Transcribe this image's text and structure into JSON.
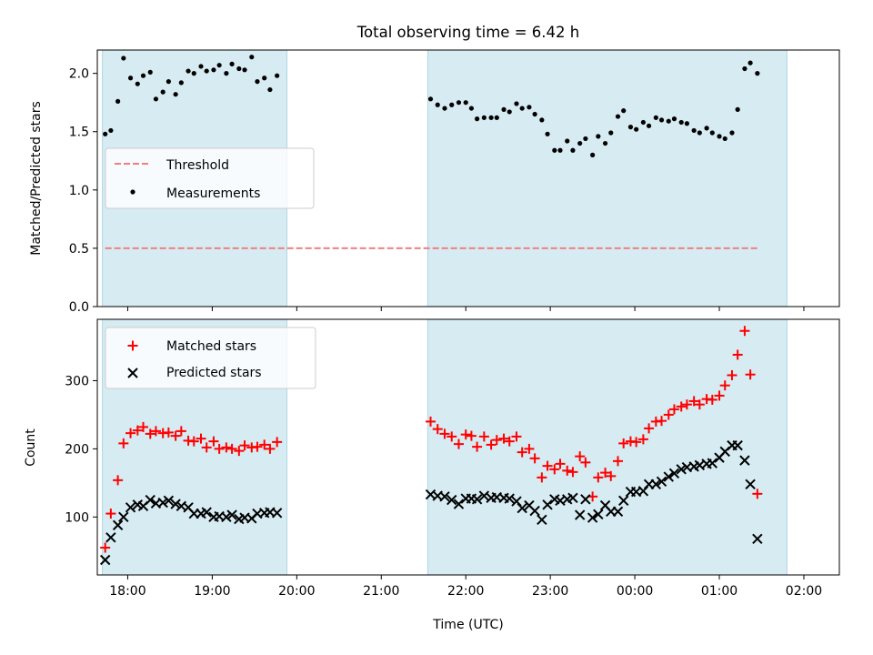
{
  "title": "Total observing time = 6.42 h",
  "chart_data": [
    {
      "type": "scatter",
      "ylabel": "Matched/Predicted stars",
      "xlabel": "",
      "ylim": [
        0,
        2.2
      ],
      "yticks": [
        "0.0",
        "0.5",
        "1.0",
        "1.5",
        "2.0"
      ],
      "legend_position": "center-left",
      "threshold": {
        "name": "Threshold",
        "value": 0.5,
        "color": "#f08080",
        "style": "dashed"
      },
      "shaded_intervals": [
        [
          "17:42",
          "19:53"
        ],
        [
          "21:33",
          "01:48"
        ]
      ],
      "series": [
        {
          "name": "Measurements",
          "color": "#000000",
          "marker": "dot",
          "points": [
            [
              "17:44",
              1.48
            ],
            [
              "17:48",
              1.51
            ],
            [
              "17:53",
              1.76
            ],
            [
              "17:57",
              2.13
            ],
            [
              "18:02",
              1.96
            ],
            [
              "18:07",
              1.91
            ],
            [
              "18:11",
              1.98
            ],
            [
              "18:16",
              2.01
            ],
            [
              "18:20",
              1.78
            ],
            [
              "18:25",
              1.84
            ],
            [
              "18:29",
              1.93
            ],
            [
              "18:34",
              1.82
            ],
            [
              "18:38",
              1.92
            ],
            [
              "18:43",
              2.02
            ],
            [
              "18:47",
              2.0
            ],
            [
              "18:52",
              2.06
            ],
            [
              "18:56",
              2.02
            ],
            [
              "19:01",
              2.03
            ],
            [
              "19:05",
              2.07
            ],
            [
              "19:10",
              2.0
            ],
            [
              "19:14",
              2.08
            ],
            [
              "19:19",
              2.04
            ],
            [
              "19:23",
              2.03
            ],
            [
              "19:28",
              2.14
            ],
            [
              "19:32",
              1.93
            ],
            [
              "19:37",
              1.96
            ],
            [
              "19:41",
              1.86
            ],
            [
              "19:46",
              1.98
            ],
            [
              "21:35",
              1.78
            ],
            [
              "21:40",
              1.73
            ],
            [
              "21:45",
              1.7
            ],
            [
              "21:50",
              1.73
            ],
            [
              "21:55",
              1.75
            ],
            [
              "22:00",
              1.75
            ],
            [
              "22:04",
              1.7
            ],
            [
              "22:08",
              1.61
            ],
            [
              "22:13",
              1.62
            ],
            [
              "22:18",
              1.62
            ],
            [
              "22:22",
              1.62
            ],
            [
              "22:27",
              1.69
            ],
            [
              "22:31",
              1.67
            ],
            [
              "22:36",
              1.74
            ],
            [
              "22:40",
              1.7
            ],
            [
              "22:45",
              1.71
            ],
            [
              "22:49",
              1.65
            ],
            [
              "22:54",
              1.6
            ],
            [
              "22:58",
              1.48
            ],
            [
              "23:03",
              1.34
            ],
            [
              "23:07",
              1.34
            ],
            [
              "23:12",
              1.42
            ],
            [
              "23:16",
              1.34
            ],
            [
              "23:21",
              1.4
            ],
            [
              "23:25",
              1.44
            ],
            [
              "23:30",
              1.3
            ],
            [
              "23:34",
              1.46
            ],
            [
              "23:39",
              1.4
            ],
            [
              "23:43",
              1.49
            ],
            [
              "23:48",
              1.63
            ],
            [
              "23:52",
              1.68
            ],
            [
              "23:57",
              1.54
            ],
            [
              "00:01",
              1.52
            ],
            [
              "00:06",
              1.58
            ],
            [
              "00:10",
              1.55
            ],
            [
              "00:15",
              1.62
            ],
            [
              "00:19",
              1.6
            ],
            [
              "00:24",
              1.59
            ],
            [
              "00:28",
              1.61
            ],
            [
              "00:33",
              1.58
            ],
            [
              "00:37",
              1.57
            ],
            [
              "00:42",
              1.51
            ],
            [
              "00:46",
              1.49
            ],
            [
              "00:51",
              1.53
            ],
            [
              "00:55",
              1.49
            ],
            [
              "01:00",
              1.46
            ],
            [
              "01:04",
              1.44
            ],
            [
              "01:09",
              1.49
            ],
            [
              "01:13",
              1.69
            ],
            [
              "01:18",
              2.04
            ],
            [
              "01:22",
              2.09
            ],
            [
              "01:27",
              2.0
            ]
          ]
        }
      ]
    },
    {
      "type": "scatter",
      "ylabel": "Count",
      "xlabel": "Time (UTC)",
      "ylim": [
        15,
        390
      ],
      "yticks": [
        "100",
        "200",
        "300"
      ],
      "xticks": [
        "18:00",
        "19:00",
        "20:00",
        "21:00",
        "22:00",
        "23:00",
        "00:00",
        "01:00",
        "02:00"
      ],
      "legend_position": "top-left",
      "shaded_intervals": [
        [
          "17:42",
          "19:53"
        ],
        [
          "21:33",
          "01:48"
        ]
      ],
      "series": [
        {
          "name": "Matched stars",
          "color": "#ff0000",
          "marker": "plus",
          "points": [
            [
              "17:44",
              55
            ],
            [
              "17:48",
              105
            ],
            [
              "17:53",
              154
            ],
            [
              "17:57",
              208
            ],
            [
              "18:02",
              223
            ],
            [
              "18:07",
              227
            ],
            [
              "18:11",
              232
            ],
            [
              "18:16",
              222
            ],
            [
              "18:20",
              226
            ],
            [
              "18:25",
              223
            ],
            [
              "18:29",
              224
            ],
            [
              "18:34",
              219
            ],
            [
              "18:38",
              226
            ],
            [
              "18:43",
              212
            ],
            [
              "18:47",
              211
            ],
            [
              "18:52",
              215
            ],
            [
              "18:56",
              202
            ],
            [
              "19:01",
              211
            ],
            [
              "19:05",
              200
            ],
            [
              "19:10",
              202
            ],
            [
              "19:14",
              200
            ],
            [
              "19:19",
              197
            ],
            [
              "19:23",
              205
            ],
            [
              "19:28",
              202
            ],
            [
              "19:32",
              203
            ],
            [
              "19:37",
              206
            ],
            [
              "19:41",
              200
            ],
            [
              "19:46",
              210
            ],
            [
              "21:35",
              240
            ],
            [
              "21:40",
              229
            ],
            [
              "21:45",
              222
            ],
            [
              "21:50",
              218
            ],
            [
              "21:55",
              207
            ],
            [
              "22:00",
              221
            ],
            [
              "22:04",
              219
            ],
            [
              "22:08",
              203
            ],
            [
              "22:13",
              218
            ],
            [
              "22:18",
              206
            ],
            [
              "22:22",
              213
            ],
            [
              "22:27",
              215
            ],
            [
              "22:31",
              211
            ],
            [
              "22:36",
              218
            ],
            [
              "22:40",
              195
            ],
            [
              "22:45",
              200
            ],
            [
              "22:49",
              186
            ],
            [
              "22:54",
              158
            ],
            [
              "22:58",
              175
            ],
            [
              "23:03",
              170
            ],
            [
              "23:07",
              178
            ],
            [
              "23:12",
              168
            ],
            [
              "23:16",
              166
            ],
            [
              "23:21",
              189
            ],
            [
              "23:25",
              180
            ],
            [
              "23:30",
              130
            ],
            [
              "23:34",
              158
            ],
            [
              "23:39",
              165
            ],
            [
              "23:43",
              160
            ],
            [
              "23:48",
              182
            ],
            [
              "23:52",
              208
            ],
            [
              "23:57",
              211
            ],
            [
              "00:01",
              210
            ],
            [
              "00:06",
              214
            ],
            [
              "00:10",
              230
            ],
            [
              "00:15",
              240
            ],
            [
              "00:19",
              241
            ],
            [
              "00:24",
              250
            ],
            [
              "00:28",
              258
            ],
            [
              "00:33",
              262
            ],
            [
              "00:37",
              265
            ],
            [
              "00:42",
              270
            ],
            [
              "00:46",
              265
            ],
            [
              "00:51",
              273
            ],
            [
              "00:55",
              272
            ],
            [
              "01:00",
              278
            ],
            [
              "01:04",
              293
            ],
            [
              "01:09",
              308
            ],
            [
              "01:13",
              338
            ],
            [
              "01:18",
              373
            ],
            [
              "01:22",
              309
            ],
            [
              "01:27",
              134
            ]
          ]
        },
        {
          "name": "Predicted stars",
          "color": "#000000",
          "marker": "x",
          "points": [
            [
              "17:44",
              37
            ],
            [
              "17:48",
              70
            ],
            [
              "17:53",
              88
            ],
            [
              "17:57",
              100
            ],
            [
              "18:02",
              114
            ],
            [
              "18:07",
              118
            ],
            [
              "18:11",
              116
            ],
            [
              "18:16",
              125
            ],
            [
              "18:20",
              120
            ],
            [
              "18:25",
              121
            ],
            [
              "18:29",
              124
            ],
            [
              "18:34",
              119
            ],
            [
              "18:38",
              116
            ],
            [
              "18:43",
              114
            ],
            [
              "18:47",
              105
            ],
            [
              "18:52",
              105
            ],
            [
              "18:56",
              107
            ],
            [
              "19:01",
              100
            ],
            [
              "19:05",
              101
            ],
            [
              "19:10",
              100
            ],
            [
              "19:14",
              103
            ],
            [
              "19:19",
              97
            ],
            [
              "19:23",
              99
            ],
            [
              "19:28",
              98
            ],
            [
              "19:32",
              105
            ],
            [
              "19:37",
              106
            ],
            [
              "19:41",
              107
            ],
            [
              "19:46",
              106
            ],
            [
              "21:35",
              133
            ],
            [
              "21:40",
              131
            ],
            [
              "21:45",
              130
            ],
            [
              "21:50",
              125
            ],
            [
              "21:55",
              119
            ],
            [
              "22:00",
              127
            ],
            [
              "22:04",
              127
            ],
            [
              "22:08",
              126
            ],
            [
              "22:13",
              131
            ],
            [
              "22:18",
              128
            ],
            [
              "22:22",
              129
            ],
            [
              "22:27",
              128
            ],
            [
              "22:31",
              127
            ],
            [
              "22:36",
              123
            ],
            [
              "22:40",
              113
            ],
            [
              "22:45",
              117
            ],
            [
              "22:49",
              109
            ],
            [
              "22:54",
              96
            ],
            [
              "22:58",
              118
            ],
            [
              "23:03",
              126
            ],
            [
              "23:07",
              124
            ],
            [
              "23:12",
              126
            ],
            [
              "23:16",
              128
            ],
            [
              "23:21",
              103
            ],
            [
              "23:25",
              126
            ],
            [
              "23:30",
              99
            ],
            [
              "23:34",
              104
            ],
            [
              "23:39",
              117
            ],
            [
              "23:43",
              108
            ],
            [
              "23:48",
              108
            ],
            [
              "23:52",
              124
            ],
            [
              "23:57",
              137
            ],
            [
              "00:01",
              137
            ],
            [
              "00:06",
              138
            ],
            [
              "00:10",
              148
            ],
            [
              "00:15",
              148
            ],
            [
              "00:19",
              152
            ],
            [
              "00:24",
              159
            ],
            [
              "00:28",
              164
            ],
            [
              "00:33",
              170
            ],
            [
              "00:37",
              173
            ],
            [
              "00:42",
              174
            ],
            [
              "00:46",
              176
            ],
            [
              "00:51",
              178
            ],
            [
              "00:55",
              179
            ],
            [
              "01:00",
              187
            ],
            [
              "01:04",
              196
            ],
            [
              "01:09",
              205
            ],
            [
              "01:13",
              205
            ],
            [
              "01:18",
              183
            ],
            [
              "01:22",
              148
            ],
            [
              "01:27",
              68
            ]
          ]
        }
      ]
    }
  ],
  "colors": {
    "shade": "#add8e6",
    "frame": "#000000"
  }
}
